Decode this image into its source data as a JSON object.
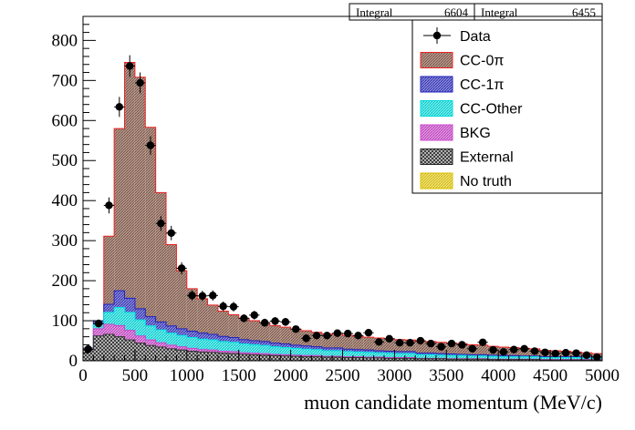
{
  "stats": [
    {
      "label": "Integral",
      "value": "6604"
    },
    {
      "label": "Integral",
      "value": "6455"
    }
  ],
  "chart_data": {
    "type": "stacked-histogram",
    "title": "",
    "xlabel": "muon candidate momentum (MeV/c)",
    "ylabel": "",
    "xlim": [
      0,
      5000
    ],
    "ylim": [
      0,
      860
    ],
    "bin_width": 100,
    "x_ticks": [
      0,
      500,
      1000,
      1500,
      2000,
      2500,
      3000,
      3500,
      4000,
      4500,
      5000
    ],
    "y_ticks": [
      0,
      100,
      200,
      300,
      400,
      500,
      600,
      700,
      800
    ],
    "series": [
      {
        "name": "External",
        "color": "#333333",
        "fill": "crosshatch",
        "values": [
          28,
          62,
          66,
          60,
          52,
          44,
          38,
          34,
          30,
          27,
          24,
          22,
          21,
          19,
          18,
          16,
          15,
          14,
          13,
          12,
          11,
          10,
          10,
          9,
          9,
          8,
          8,
          7,
          7,
          6,
          6,
          6,
          5,
          5,
          5,
          4,
          4,
          4,
          4,
          3,
          3,
          3,
          3,
          3,
          2,
          2,
          2,
          2,
          2,
          2
        ]
      },
      {
        "name": "BKG",
        "color": "#cc44cc",
        "fill": "hatch",
        "values": [
          3,
          18,
          25,
          28,
          24,
          18,
          14,
          11,
          9,
          8,
          7,
          6,
          6,
          5,
          5,
          4,
          4,
          4,
          3,
          3,
          3,
          3,
          3,
          2,
          2,
          2,
          2,
          2,
          2,
          2,
          2,
          2,
          1,
          1,
          1,
          1,
          1,
          1,
          1,
          1,
          1,
          1,
          1,
          1,
          1,
          1,
          1,
          1,
          1,
          1
        ]
      },
      {
        "name": "CC-Other",
        "color": "#00e5e5",
        "fill": "hatch",
        "values": [
          1,
          10,
          30,
          45,
          45,
          40,
          35,
          32,
          30,
          28,
          27,
          26,
          25,
          24,
          23,
          22,
          21,
          20,
          19,
          18,
          17,
          16,
          15,
          14,
          14,
          13,
          12,
          12,
          11,
          11,
          10,
          10,
          9,
          9,
          8,
          8,
          8,
          7,
          7,
          7,
          6,
          6,
          6,
          6,
          5,
          5,
          5,
          5,
          4,
          4
        ]
      },
      {
        "name": "CC-1π",
        "color": "#2222bb",
        "fill": "hatch",
        "values": [
          0,
          10,
          20,
          42,
          35,
          28,
          23,
          20,
          18,
          17,
          16,
          15,
          14,
          13,
          12,
          11,
          10,
          10,
          9,
          9,
          8,
          8,
          7,
          7,
          7,
          6,
          6,
          6,
          5,
          5,
          5,
          5,
          4,
          4,
          4,
          4,
          3,
          3,
          3,
          3,
          3,
          3,
          2,
          2,
          2,
          2,
          2,
          2,
          2,
          2
        ]
      },
      {
        "name": "CC-0π",
        "color": "#ee2222",
        "fill": "hatch",
        "values": [
          0,
          0,
          170,
          405,
          589,
          578,
          473,
          323,
          203,
          145,
          106,
          86,
          73,
          63,
          57,
          53,
          50,
          47,
          44,
          42,
          40,
          38,
          36,
          35,
          34,
          34,
          33,
          32,
          32,
          31,
          30,
          29,
          29,
          29,
          28,
          27,
          27,
          25,
          24,
          22,
          21,
          20,
          19,
          18,
          16,
          15,
          14,
          12,
          11,
          9
        ]
      },
      {
        "name": "No truth",
        "color": "#e6cc00",
        "fill": "hatch",
        "values": []
      }
    ],
    "data_points": {
      "name": "Data",
      "values": [
        29,
        93,
        388,
        634,
        736,
        694,
        538,
        343,
        319,
        231,
        163,
        162,
        163,
        136,
        135,
        106,
        114,
        95,
        99,
        97,
        79,
        56,
        63,
        63,
        69,
        68,
        63,
        70,
        47,
        55,
        45,
        45,
        50,
        43,
        35,
        43,
        40,
        30,
        46,
        27,
        22,
        28,
        30,
        24,
        21,
        18,
        20,
        19,
        14,
        9
      ],
      "errors": [
        5,
        10,
        20,
        25,
        27,
        26,
        23,
        19,
        18,
        15,
        13,
        13,
        13,
        12,
        12,
        10,
        11,
        10,
        10,
        10,
        9,
        7,
        8,
        8,
        8,
        8,
        8,
        8,
        7,
        7,
        7,
        7,
        7,
        7,
        6,
        7,
        6,
        5,
        7,
        5,
        5,
        5,
        5,
        5,
        5,
        4,
        4,
        4,
        4,
        3
      ]
    },
    "legend": {
      "position": "top-right",
      "entries": [
        {
          "label": "Data",
          "kind": "marker",
          "color": "#000000"
        },
        {
          "label": "CC-0π",
          "kind": "box",
          "color": "#ee2222",
          "fill_color": "#c8a8a0"
        },
        {
          "label": "CC-1π",
          "kind": "box",
          "color": "#2222bb",
          "fill_color": "#a0a0d8"
        },
        {
          "label": "CC-Other",
          "kind": "box",
          "color": "#00d8d8",
          "fill_color": "#a0f4f4"
        },
        {
          "label": "BKG",
          "kind": "box",
          "color": "#cc44cc",
          "fill_color": "#e8a8e8"
        },
        {
          "label": "External",
          "kind": "box",
          "color": "#222222",
          "fill_color": "#bbbbbb"
        },
        {
          "label": "No truth",
          "kind": "box",
          "color": "#d8c000",
          "fill_color": "#f4e880"
        }
      ]
    }
  }
}
